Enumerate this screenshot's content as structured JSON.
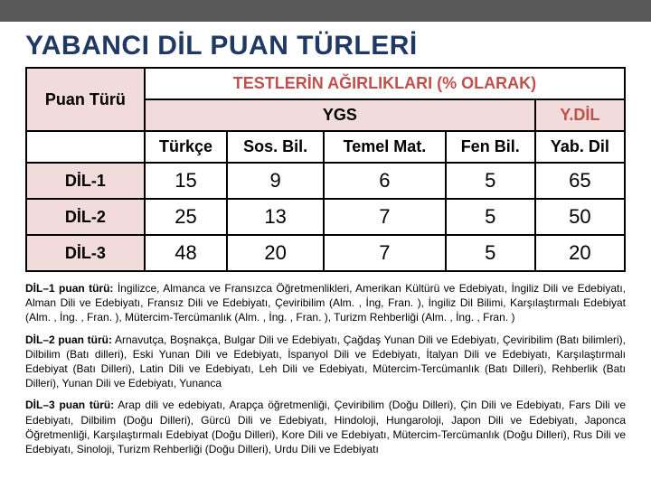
{
  "title": "YABANCI DİL PUAN TÜRLERİ",
  "table": {
    "header_main": "TESTLERİN AĞIRLIKLARI (% OLARAK)",
    "puan_turu": "Puan Türü",
    "ygs": "YGS",
    "ydil": "Y.DİL",
    "cols": {
      "c1": "Türkçe",
      "c2": "Sos. Bil.",
      "c3": "Temel Mat.",
      "c4": "Fen Bil.",
      "c5": "Yab. Dil"
    },
    "rows": [
      {
        "label": "DİL-1",
        "v1": "15",
        "v2": "9",
        "v3": "6",
        "v4": "5",
        "v5": "65"
      },
      {
        "label": "DİL-2",
        "v1": "25",
        "v2": "13",
        "v3": "7",
        "v4": "5",
        "v5": "50"
      },
      {
        "label": "DİL-3",
        "v1": "48",
        "v2": "20",
        "v3": "7",
        "v4": "5",
        "v5": "20"
      }
    ]
  },
  "paras": {
    "p1b": "DİL–1 puan türü:",
    "p1": " İngilizce, Almanca ve Fransızca Öğretmenlikleri, Amerikan Kültürü ve Edebiyatı, İngiliz Dili ve Edebiyatı, Alman Dili ve Edebiyatı, Fransız Dili ve Edebiyatı, Çeviribilim (Alm. , İng, Fran. ), İngiliz Dil Bilimi, Karşılaştırmalı Edebiyat (Alm. , İng. , Fran. ), Mütercim-Tercümanlık (Alm. , İng. , Fran. ), Turizm Rehberliği (Alm. , İng. , Fran. )",
    "p2b": "DİL–2 puan türü:",
    "p2": " Arnavutça, Boşnakça, Bulgar Dili ve Edebiyatı, Çağdaş Yunan Dili ve Edebiyatı, Çeviribilim (Batı bilimleri), Dilbilim (Batı dilleri), Eski Yunan Dili ve Edebiyatı, İspanyol Dili ve Edebiyatı, İtalyan Dili ve Edebiyatı, Karşılaştırmalı Edebiyat (Batı Dilleri), Latin Dili ve Edebiyatı, Leh Dili ve Edebiyatı, Mütercim-Tercümanlık (Batı Dilleri), Rehberlik (Batı Dilleri), Yunan Dili ve Edebiyatı, Yunanca",
    "p3b": "DİL–3 puan türü:",
    "p3": " Arap dili ve edebiyatı, Arapça öğretmenliği, Çeviribilim (Doğu Dilleri), Çin Dili ve Edebiyatı, Fars Dili ve Edebiyatı, Dilbilim (Doğu Dilleri), Gürcü Dili ve Edebiyatı, Hindoloji, Hungaroloji, Japon Dili ve Edebiyatı, Japonca Öğretmenliği, Karşılaştırmalı Edebiyat (Doğu Dilleri), Kore Dili ve Edebiyatı, Mütercim-Tercümanlık (Doğu Dilleri), Rus Dili ve Edebiyatı, Sinoloji, Turizm Rehberliği (Doğu Dilleri), Urdu Dili ve Edebiyatı"
  },
  "colors": {
    "title": "#1f3864",
    "accent": "#c0504d",
    "shade": "#f2dcdb",
    "topbar": "#595959"
  }
}
